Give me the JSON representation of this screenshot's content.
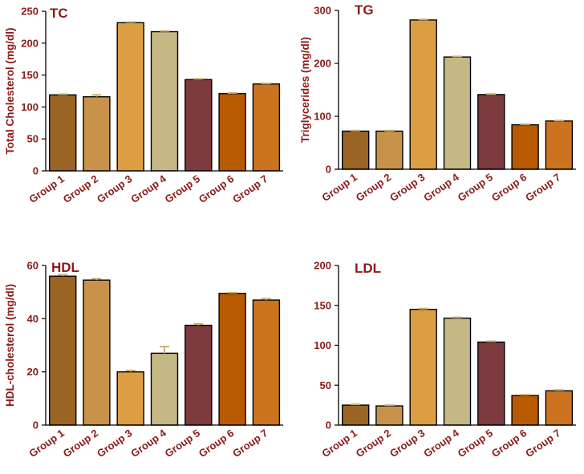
{
  "colors": [
    "#9a6424",
    "#c9924b",
    "#dd9e43",
    "#c4b985",
    "#7d3b40",
    "#b85a00",
    "#cc7320"
  ],
  "error_color": "#c9ae74",
  "chart_data": [
    {
      "type": "bar",
      "title": "TC",
      "ylabel": "Total  Cholesterol (mg/dl)",
      "categories": [
        "Group 1",
        "Group 2",
        "Group 3",
        "Group 4",
        "Group 5",
        "Group 6",
        "Group 7"
      ],
      "values": [
        119,
        116,
        232,
        218,
        143,
        121,
        136
      ],
      "errors": [
        1,
        3,
        1,
        1,
        1,
        1,
        1
      ],
      "ylim": [
        0,
        250
      ],
      "yticks": [
        0,
        50,
        100,
        150,
        200,
        250
      ]
    },
    {
      "type": "bar",
      "title": "TG",
      "ylabel": "Triglycerides (mg/dl)",
      "categories": [
        "Group 1",
        "Group 2",
        "Group 3",
        "Group 4",
        "Group 5",
        "Group 6",
        "Group 7"
      ],
      "values": [
        72,
        72,
        282,
        212,
        141,
        84,
        91
      ],
      "errors": [
        1,
        1,
        1,
        1,
        1,
        1,
        1
      ],
      "ylim": [
        0,
        300
      ],
      "yticks": [
        0,
        100,
        200,
        300
      ]
    },
    {
      "type": "bar",
      "title": "HDL",
      "ylabel": "HDL-cholesterol (mg/dl)",
      "categories": [
        "Group 1",
        "Group 2",
        "Group 3",
        "Group 4",
        "Group 5",
        "Group 6",
        "Group 7"
      ],
      "values": [
        56,
        54.5,
        20,
        27,
        37.5,
        49.5,
        47
      ],
      "errors": [
        0.5,
        0.5,
        0.5,
        2.5,
        0.5,
        0.3,
        0.5
      ],
      "ylim": [
        0,
        60
      ],
      "yticks": [
        0,
        20,
        40,
        60
      ]
    },
    {
      "type": "bar",
      "title": "LDL",
      "ylabel": "",
      "categories": [
        "Group 1",
        "Group 2",
        "Group 3",
        "Group 4",
        "Group 5",
        "Group 6",
        "Group 7"
      ],
      "values": [
        25,
        24,
        145,
        134,
        104,
        37,
        43
      ],
      "errors": [
        1,
        1,
        1,
        1,
        1,
        1,
        1
      ],
      "ylim": [
        0,
        200
      ],
      "yticks": [
        0,
        50,
        100,
        150,
        200
      ]
    }
  ]
}
